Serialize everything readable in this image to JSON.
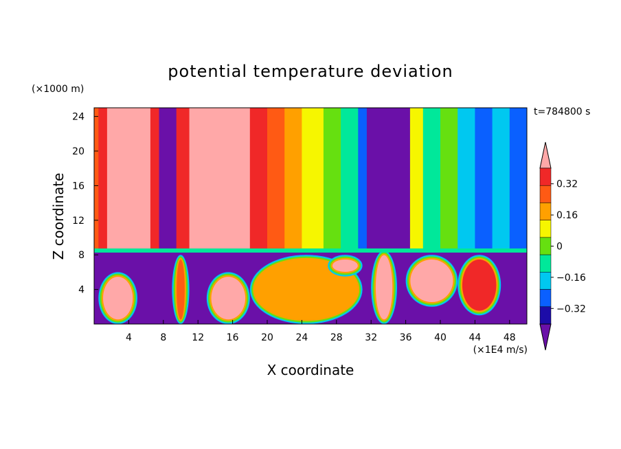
{
  "chart_data": {
    "type": "heatmap",
    "title": "potential temperature deviation",
    "xlabel": "X coordinate",
    "ylabel": "Z coordinate",
    "x_units": "(×1E4 m/s)",
    "y_units": "(×1000 m)",
    "time_label": "t=784800 s",
    "xlim": [
      0,
      50
    ],
    "ylim": [
      0,
      25
    ],
    "x_ticks": [
      4,
      8,
      12,
      16,
      20,
      24,
      28,
      32,
      36,
      40,
      44,
      48
    ],
    "y_ticks": [
      4,
      8,
      12,
      16,
      20,
      24
    ],
    "colorbar": {
      "levels": [
        -0.4,
        -0.32,
        -0.24,
        -0.16,
        -0.08,
        0,
        0.08,
        0.16,
        0.24,
        0.32,
        0.4
      ],
      "labels": [
        "0.32",
        "0.16",
        "0",
        "−0.16",
        "−0.32"
      ],
      "label_values": [
        0.32,
        0.16,
        0,
        -0.16,
        -0.32
      ],
      "colors_low_to_high": [
        "#6a10a8",
        "#1c0ca8",
        "#0a60ff",
        "#00c8f0",
        "#00e89a",
        "#66e010",
        "#f6f600",
        "#ffa000",
        "#ff5a14",
        "#f02828",
        "#ffa8a8"
      ]
    },
    "upper_layer_columns": [
      {
        "x0": 0.0,
        "x1": 0.5,
        "value": 0.24
      },
      {
        "x0": 0.5,
        "x1": 1.5,
        "value": 0.32
      },
      {
        "x0": 1.5,
        "x1": 6.5,
        "value": 0.4
      },
      {
        "x0": 6.5,
        "x1": 7.5,
        "value": 0.32
      },
      {
        "x0": 7.5,
        "x1": 9.5,
        "value": -0.4
      },
      {
        "x0": 9.5,
        "x1": 11.0,
        "value": 0.32
      },
      {
        "x0": 11.0,
        "x1": 18.0,
        "value": 0.4
      },
      {
        "x0": 18.0,
        "x1": 20.0,
        "value": 0.32
      },
      {
        "x0": 20.0,
        "x1": 22.0,
        "value": 0.24
      },
      {
        "x0": 22.0,
        "x1": 24.0,
        "value": 0.16
      },
      {
        "x0": 24.0,
        "x1": 26.5,
        "value": 0.08
      },
      {
        "x0": 26.5,
        "x1": 28.5,
        "value": 0.0
      },
      {
        "x0": 28.5,
        "x1": 30.5,
        "value": -0.08
      },
      {
        "x0": 30.5,
        "x1": 31.5,
        "value": -0.24
      },
      {
        "x0": 31.5,
        "x1": 36.5,
        "value": -0.4
      },
      {
        "x0": 36.5,
        "x1": 38.0,
        "value": 0.08
      },
      {
        "x0": 38.0,
        "x1": 40.0,
        "value": -0.08
      },
      {
        "x0": 40.0,
        "x1": 42.0,
        "value": 0.0
      },
      {
        "x0": 42.0,
        "x1": 44.0,
        "value": -0.16
      },
      {
        "x0": 44.0,
        "x1": 46.0,
        "value": -0.24
      },
      {
        "x0": 46.0,
        "x1": 48.0,
        "value": -0.16
      },
      {
        "x0": 48.0,
        "x1": 50.0,
        "value": -0.24
      }
    ],
    "interface_height": 8.5,
    "lower_layer_background_value": -0.4,
    "lower_layer_features": [
      {
        "x0": 0.5,
        "x1": 5.0,
        "z0": 0.0,
        "z1": 6.0,
        "value": 0.4
      },
      {
        "x0": 9.0,
        "x1": 11.0,
        "z0": 0.0,
        "z1": 8.0,
        "value": 0.24
      },
      {
        "x0": 13.0,
        "x1": 18.0,
        "z0": 0.0,
        "z1": 6.0,
        "value": 0.4
      },
      {
        "x0": 18.0,
        "x1": 31.0,
        "z0": 0.0,
        "z1": 8.0,
        "value": 0.16
      },
      {
        "x0": 27.0,
        "x1": 31.0,
        "z0": 5.5,
        "z1": 8.0,
        "value": 0.4
      },
      {
        "x0": 32.0,
        "x1": 35.0,
        "z0": 0.0,
        "z1": 8.5,
        "value": 0.4
      },
      {
        "x0": 36.0,
        "x1": 42.0,
        "z0": 2.0,
        "z1": 8.0,
        "value": 0.4
      },
      {
        "x0": 42.0,
        "x1": 47.0,
        "z0": 1.0,
        "z1": 8.0,
        "value": 0.32
      }
    ]
  }
}
